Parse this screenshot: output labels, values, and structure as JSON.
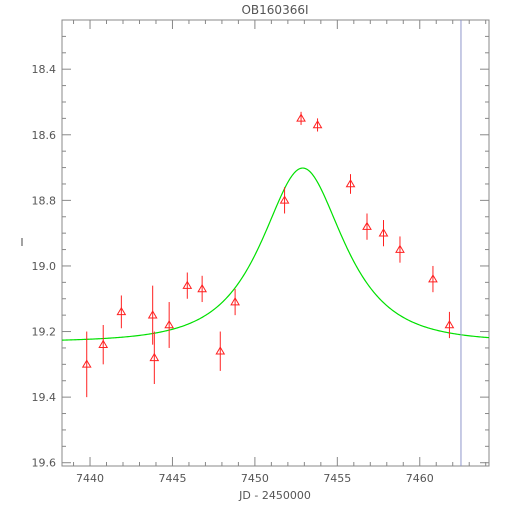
{
  "chart_data": {
    "type": "scatter",
    "title": "OB160366I",
    "xlabel": "JD - 2450000",
    "ylabel": "I",
    "xlim": [
      7438.3,
      7464.2
    ],
    "ylim": [
      19.61,
      18.25
    ],
    "y_inverted": true,
    "x_ticks": [
      7440,
      7445,
      7450,
      7455,
      7460
    ],
    "y_ticks": [
      18.4,
      18.6,
      18.8,
      19.0,
      19.2,
      19.4,
      19.6
    ],
    "y_tick_labels": [
      "18.4",
      "18.6",
      "18.8",
      "19.0",
      "19.2",
      "19.4",
      "19.6"
    ],
    "x_tick_labels": [
      "7440",
      "7445",
      "7450",
      "7455",
      "7460"
    ],
    "series": [
      {
        "kind": "points",
        "marker": "triangle-open",
        "color": "#ff2020",
        "points": [
          {
            "x": 7439.8,
            "y": 19.3,
            "err": 0.1
          },
          {
            "x": 7440.8,
            "y": 19.24,
            "err": 0.06
          },
          {
            "x": 7441.9,
            "y": 19.14,
            "err": 0.05
          },
          {
            "x": 7443.8,
            "y": 19.15,
            "err": 0.09
          },
          {
            "x": 7443.9,
            "y": 19.28,
            "err": 0.08
          },
          {
            "x": 7444.8,
            "y": 19.18,
            "err": 0.07
          },
          {
            "x": 7445.9,
            "y": 19.06,
            "err": 0.04
          },
          {
            "x": 7446.8,
            "y": 19.07,
            "err": 0.04
          },
          {
            "x": 7447.9,
            "y": 19.26,
            "err": 0.06
          },
          {
            "x": 7448.8,
            "y": 19.11,
            "err": 0.04
          },
          {
            "x": 7451.8,
            "y": 18.8,
            "err": 0.04
          },
          {
            "x": 7452.8,
            "y": 18.55,
            "err": 0.02
          },
          {
            "x": 7453.8,
            "y": 18.57,
            "err": 0.02
          },
          {
            "x": 7455.8,
            "y": 18.75,
            "err": 0.03
          },
          {
            "x": 7456.8,
            "y": 18.88,
            "err": 0.04
          },
          {
            "x": 7457.8,
            "y": 18.9,
            "err": 0.04
          },
          {
            "x": 7458.8,
            "y": 18.95,
            "err": 0.04
          },
          {
            "x": 7460.8,
            "y": 19.04,
            "err": 0.04
          },
          {
            "x": 7461.8,
            "y": 19.18,
            "err": 0.04
          }
        ]
      },
      {
        "kind": "model",
        "color": "#00e000",
        "model": {
          "t0": 7452.9,
          "tE": 3.5,
          "u0": 0.73,
          "base_mag": 19.2317,
          "xmin": 7438.3,
          "xmax": 7464.2
        }
      }
    ],
    "vertical_line": {
      "x": 7462.5,
      "color": "#8e96cc"
    },
    "grid": false
  }
}
